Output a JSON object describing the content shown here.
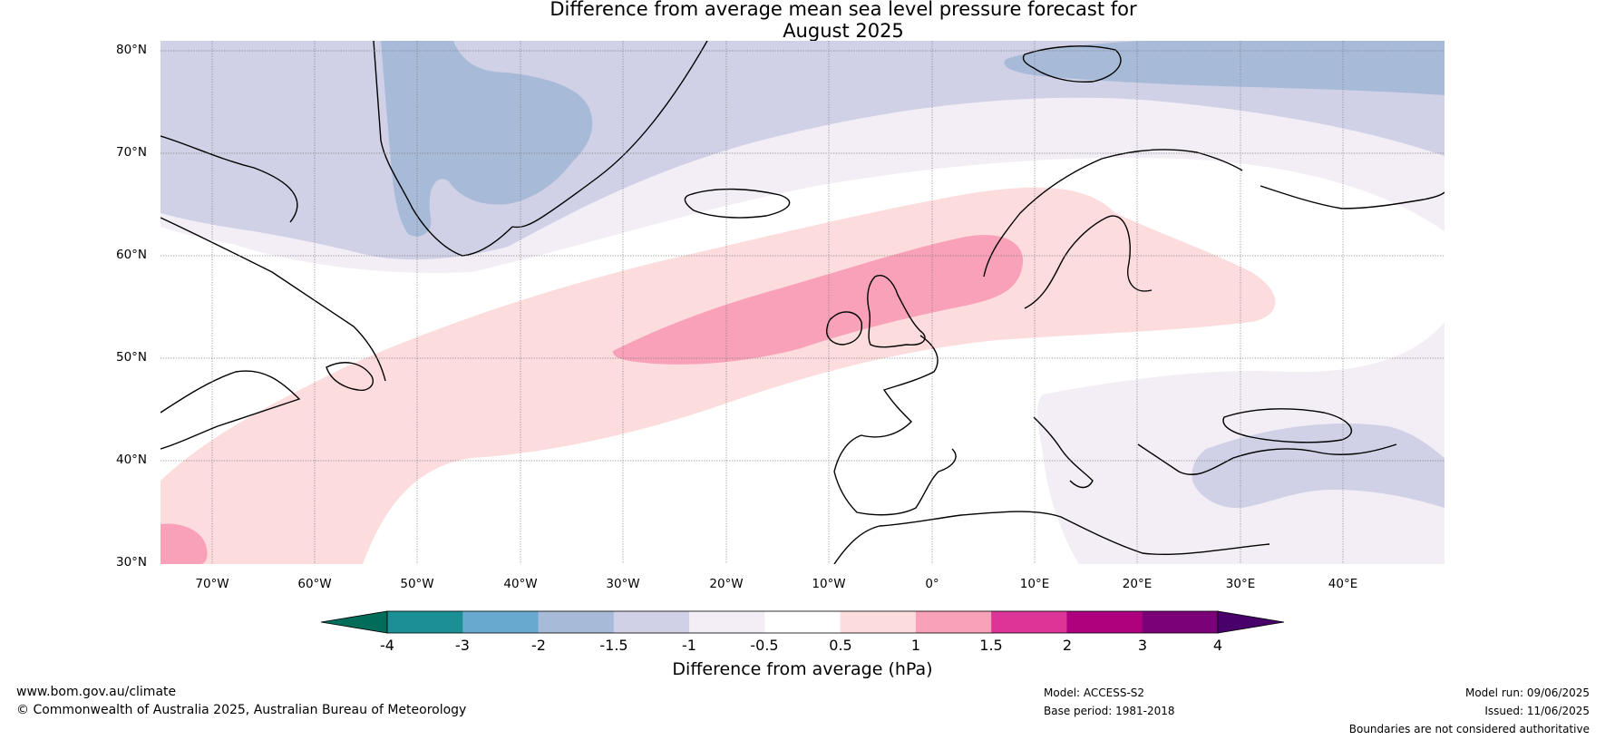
{
  "title_line1": "Difference from average mean sea level pressure forecast for",
  "title_line2": "August 2025",
  "lat_labels": [
    "80°N",
    "70°N",
    "60°N",
    "50°N",
    "40°N",
    "30°N"
  ],
  "lon_labels": [
    "70°W",
    "60°W",
    "50°W",
    "40°W",
    "30°W",
    "20°W",
    "10°W",
    "0°",
    "10°E",
    "20°E",
    "30°E",
    "40°E"
  ],
  "colorbar": {
    "ticks": [
      "-4",
      "-3",
      "-2",
      "-1.5",
      "-1",
      "-0.5",
      "0.5",
      "1",
      "1.5",
      "2",
      "3",
      "4"
    ],
    "colors": [
      "#1a8f94",
      "#67a9cf",
      "#a7bbd9",
      "#d0d1e6",
      "#f3eef6",
      "#ffffff",
      "#fcdcdc",
      "#f8a1b8",
      "#dd3497",
      "#ae017e",
      "#7a0177"
    ],
    "low_extend_color": "#016c59",
    "high_extend_color": "#49006a",
    "label": "Difference from average (hPa)"
  },
  "map_colors": {
    "minus2": "#a7bbd9",
    "minus1_5": "#d0d1e6",
    "minus1": "#f3eef6",
    "plus0_5": "#fcdcdc",
    "plus1": "#f8a1b8"
  },
  "footer": {
    "website": "www.bom.gov.au/climate",
    "copyright": "© Commonwealth of Australia 2025, Australian Bureau of Meteorology",
    "model": "Model: ACCESS-S2",
    "base_period": "Base period: 1981-2018",
    "model_run": "Model run: 09/06/2025",
    "issued": "Issued: 11/06/2025",
    "disclaimer": "Boundaries are not considered authoritative"
  }
}
